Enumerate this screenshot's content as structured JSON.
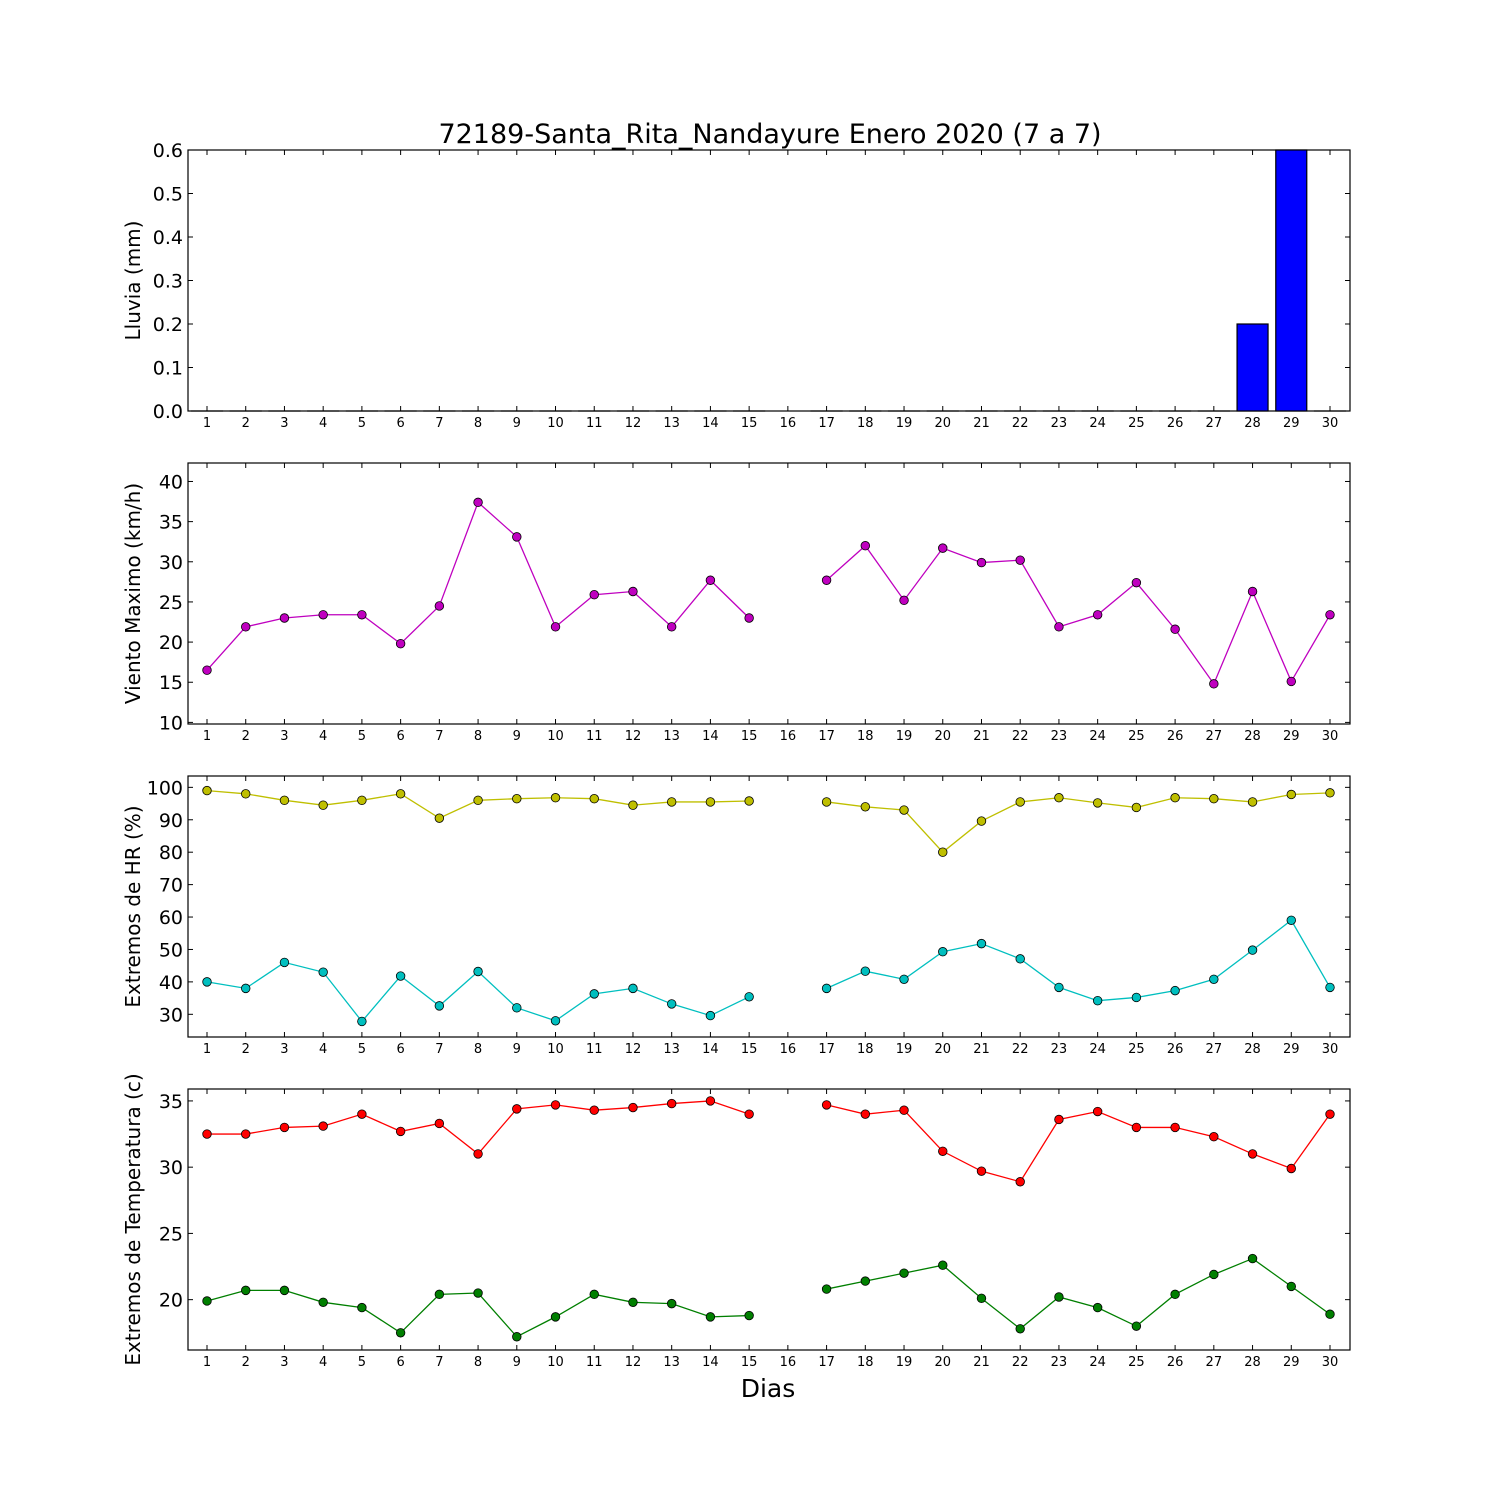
{
  "title": "72189-Santa_Rita_Nandayure Enero 2020  (7 a 7)",
  "xlabel": "Dias",
  "chart_data": [
    {
      "type": "bar",
      "ylabel": "Lluvia (mm)",
      "x": [
        1,
        2,
        3,
        4,
        5,
        6,
        7,
        8,
        9,
        10,
        11,
        12,
        13,
        14,
        15,
        16,
        17,
        18,
        19,
        20,
        21,
        22,
        23,
        24,
        25,
        26,
        27,
        28,
        29,
        30
      ],
      "xticks": [
        "1",
        "2",
        "3",
        "4",
        "5",
        "6",
        "7",
        "8",
        "9",
        "10",
        "11",
        "12",
        "13",
        "14",
        "15",
        "16",
        "17",
        "18",
        "19",
        "20",
        "21",
        "22",
        "23",
        "24",
        "25",
        "26",
        "27",
        "28",
        "29",
        "30"
      ],
      "ylim": [
        0,
        0.6
      ],
      "yticks": [
        0.0,
        0.1,
        0.2,
        0.3,
        0.4,
        0.5,
        0.6
      ],
      "ytick_labels": [
        "0.0",
        "0.1",
        "0.2",
        "0.3",
        "0.4",
        "0.5",
        "0.6"
      ],
      "series": [
        {
          "color": "#0000ff",
          "values": [
            0,
            0,
            0,
            0,
            0,
            0,
            0,
            0,
            0,
            0,
            0,
            0,
            0,
            0,
            0,
            null,
            0,
            0,
            0,
            0,
            0,
            0,
            0,
            0,
            0,
            0,
            0,
            0.2,
            0.6,
            0
          ]
        }
      ]
    },
    {
      "type": "line",
      "ylabel": "Viento Maximo (km/h)",
      "x": [
        1,
        2,
        3,
        4,
        5,
        6,
        7,
        8,
        9,
        10,
        11,
        12,
        13,
        14,
        15,
        16,
        17,
        18,
        19,
        20,
        21,
        22,
        23,
        24,
        25,
        26,
        27,
        28,
        29,
        30
      ],
      "xticks": [
        "1",
        "2",
        "3",
        "4",
        "5",
        "6",
        "7",
        "8",
        "9",
        "10",
        "11",
        "12",
        "13",
        "14",
        "15",
        "16",
        "17",
        "18",
        "19",
        "20",
        "21",
        "22",
        "23",
        "24",
        "25",
        "26",
        "27",
        "28",
        "29",
        "30"
      ],
      "ylim": [
        9.8,
        42.3
      ],
      "yticks": [
        10,
        15,
        20,
        25,
        30,
        35,
        40
      ],
      "ytick_labels": [
        "10",
        "15",
        "20",
        "25",
        "30",
        "35",
        "40"
      ],
      "series": [
        {
          "color": "#bf00bf",
          "values": [
            16.5,
            21.9,
            23.0,
            23.4,
            23.4,
            19.8,
            24.5,
            37.4,
            33.1,
            21.9,
            25.9,
            26.3,
            21.9,
            27.7,
            23.0,
            null,
            27.7,
            32.0,
            25.2,
            31.7,
            29.9,
            30.2,
            21.9,
            23.4,
            27.4,
            21.6,
            14.8,
            26.3,
            15.1,
            23.4
          ]
        }
      ]
    },
    {
      "type": "line",
      "ylabel": "Extremos de HR (%)",
      "x": [
        1,
        2,
        3,
        4,
        5,
        6,
        7,
        8,
        9,
        10,
        11,
        12,
        13,
        14,
        15,
        16,
        17,
        18,
        19,
        20,
        21,
        22,
        23,
        24,
        25,
        26,
        27,
        28,
        29,
        30
      ],
      "xticks": [
        "1",
        "2",
        "3",
        "4",
        "5",
        "6",
        "7",
        "8",
        "9",
        "10",
        "11",
        "12",
        "13",
        "14",
        "15",
        "16",
        "17",
        "18",
        "19",
        "20",
        "21",
        "22",
        "23",
        "24",
        "25",
        "26",
        "27",
        "28",
        "29",
        "30"
      ],
      "ylim": [
        23,
        103.5
      ],
      "yticks": [
        30,
        40,
        50,
        60,
        70,
        80,
        90,
        100
      ],
      "ytick_labels": [
        "30",
        "40",
        "50",
        "60",
        "70",
        "80",
        "90",
        "100"
      ],
      "series": [
        {
          "color": "#bfbf00",
          "values": [
            99,
            98,
            96,
            94.5,
            96,
            98,
            90.5,
            96,
            96.5,
            96.8,
            96.5,
            94.5,
            95.5,
            95.5,
            95.8,
            null,
            95.5,
            94,
            93,
            80,
            89.6,
            95.5,
            96.8,
            95.2,
            93.8,
            96.8,
            96.5,
            95.5,
            97.8,
            98.3
          ]
        },
        {
          "color": "#00bfbf",
          "values": [
            40,
            38,
            46,
            43,
            27.8,
            41.8,
            32.6,
            43.2,
            32,
            28,
            36.3,
            38,
            33.2,
            29.6,
            35.4,
            null,
            38,
            43.3,
            40.8,
            49.3,
            51.8,
            47.1,
            38.3,
            34.2,
            35.2,
            37.3,
            40.8,
            49.8,
            59,
            38.3
          ]
        }
      ]
    },
    {
      "type": "line",
      "ylabel": "Extremos de Temperatura (c)",
      "x": [
        1,
        2,
        3,
        4,
        5,
        6,
        7,
        8,
        9,
        10,
        11,
        12,
        13,
        14,
        15,
        16,
        17,
        18,
        19,
        20,
        21,
        22,
        23,
        24,
        25,
        26,
        27,
        28,
        29,
        30
      ],
      "xticks": [
        "1",
        "2",
        "3",
        "4",
        "5",
        "6",
        "7",
        "8",
        "9",
        "10",
        "11",
        "12",
        "13",
        "14",
        "15",
        "16",
        "17",
        "18",
        "19",
        "20",
        "21",
        "22",
        "23",
        "24",
        "25",
        "26",
        "27",
        "28",
        "29",
        "30"
      ],
      "ylim": [
        16.2,
        35.9
      ],
      "yticks": [
        20,
        25,
        30,
        35
      ],
      "ytick_labels": [
        "20",
        "25",
        "30",
        "35"
      ],
      "series": [
        {
          "color": "#ff0000",
          "values": [
            32.5,
            32.5,
            33.0,
            33.1,
            34.0,
            32.7,
            33.3,
            31.0,
            34.4,
            34.7,
            34.3,
            34.5,
            34.8,
            35.0,
            34.0,
            null,
            34.7,
            34.0,
            34.3,
            31.2,
            29.7,
            28.9,
            33.6,
            34.2,
            33.0,
            33.0,
            32.3,
            31.0,
            29.9,
            34.0
          ]
        },
        {
          "color": "#007f00",
          "values": [
            19.9,
            20.7,
            20.7,
            19.8,
            19.4,
            17.5,
            20.4,
            20.5,
            17.2,
            18.7,
            20.4,
            19.8,
            19.7,
            18.7,
            18.8,
            null,
            20.8,
            21.4,
            22.0,
            22.6,
            20.1,
            17.8,
            20.2,
            19.4,
            18.0,
            20.4,
            21.9,
            23.1,
            21.0,
            18.9
          ]
        }
      ]
    }
  ]
}
